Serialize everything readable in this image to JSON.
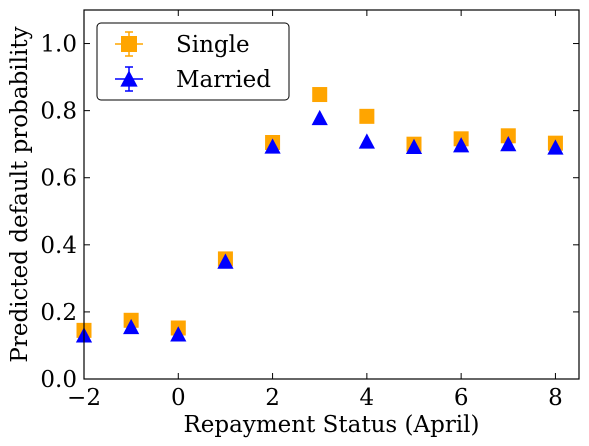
{
  "chart_data": {
    "type": "scatter",
    "xlabel": "Repayment Status (April)",
    "ylabel": "Predicted default probability",
    "xlim": [
      -2,
      8.5
    ],
    "ylim": [
      0,
      1.1
    ],
    "xticks": [
      -2,
      0,
      2,
      4,
      6,
      8
    ],
    "xtick_labels": [
      "−2",
      "0",
      "2",
      "4",
      "6",
      "8"
    ],
    "yticks": [
      0,
      0.2,
      0.4,
      0.6,
      0.8,
      1.0
    ],
    "ytick_labels": [
      "0.0",
      "0.2",
      "0.4",
      "0.6",
      "0.8",
      "1.0"
    ],
    "grid": false,
    "legend_position": "top-left",
    "series": [
      {
        "name": "Single",
        "marker": "square",
        "color": "#FFA500",
        "x": [
          -2,
          -1,
          0,
          1,
          2,
          3,
          4,
          5,
          6,
          7,
          8
        ],
        "y": [
          0.145,
          0.175,
          0.152,
          0.358,
          0.705,
          0.848,
          0.783,
          0.7,
          0.716,
          0.725,
          0.703
        ]
      },
      {
        "name": "Married",
        "marker": "triangle",
        "color": "#0000FF",
        "x": [
          -2,
          -1,
          0,
          1,
          2,
          3,
          4,
          5,
          6,
          7,
          8
        ],
        "y": [
          0.13,
          0.155,
          0.133,
          0.35,
          0.693,
          0.778,
          0.708,
          0.692,
          0.697,
          0.7,
          0.69
        ]
      }
    ]
  }
}
